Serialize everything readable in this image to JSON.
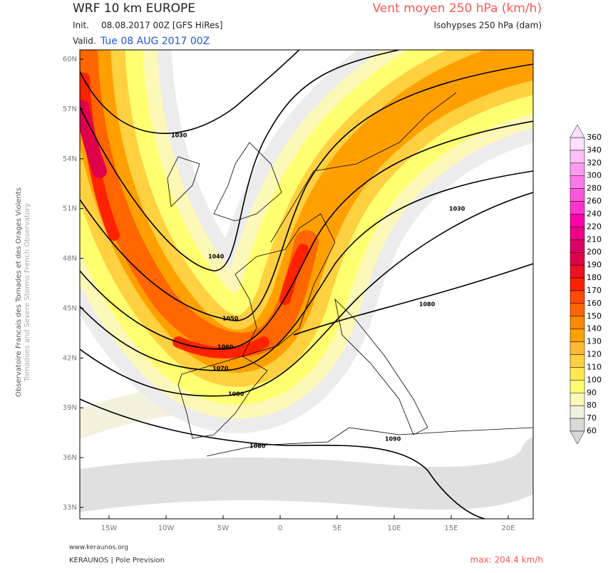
{
  "header": {
    "title": "WRF 10 km EUROPE",
    "init_label": "Init.",
    "init": "08.08.2017 00Z [GFS HiRes]",
    "valid_label": "Valid.",
    "valid": "Tue 08 AUG 2017 00Z",
    "product": "Vent moyen 250 hPa (km/h)",
    "subtitle": "Isohypses 250 hPa (dam)"
  },
  "side_text": {
    "line1": "Observatoire Francais des Tornades et des Orages Violents",
    "line2": "Tornadoes and Severe Storms French Observatory"
  },
  "map": {
    "lat_labels": [
      "60N",
      "57N",
      "54N",
      "51N",
      "48N",
      "45N",
      "42N",
      "39N",
      "36N",
      "33N"
    ],
    "lon_labels": [
      "15W",
      "10W",
      "5W",
      "0",
      "5E",
      "10E",
      "15E",
      "20E"
    ],
    "contour_labels": [
      "1030",
      "1040",
      "1050",
      "1060",
      "1070",
      "1080",
      "1080",
      "1090",
      "1030",
      "1080"
    ]
  },
  "legend": {
    "levels": [
      360,
      340,
      320,
      300,
      280,
      260,
      240,
      220,
      210,
      200,
      190,
      180,
      170,
      160,
      150,
      140,
      130,
      120,
      110,
      100,
      90,
      80,
      70,
      60
    ],
    "colors": [
      "#ffe0ff",
      "#ffc0f8",
      "#ff99f0",
      "#ff77e8",
      "#ff55dd",
      "#ff33cc",
      "#ff00aa",
      "#ee0088",
      "#dd0066",
      "#e0004a",
      "#ee1122",
      "#ff2200",
      "#ff4a00",
      "#ff6600",
      "#ff8800",
      "#ffa000",
      "#ffb830",
      "#ffd040",
      "#ffe850",
      "#ffff70",
      "#fcf8b8",
      "#f0f0e0",
      "#d8d8d8"
    ]
  },
  "footer": {
    "site": "www.keraunos.org",
    "org": "KERAUNOS | Pole Prevision",
    "max": "max: 204.4 km/h"
  }
}
